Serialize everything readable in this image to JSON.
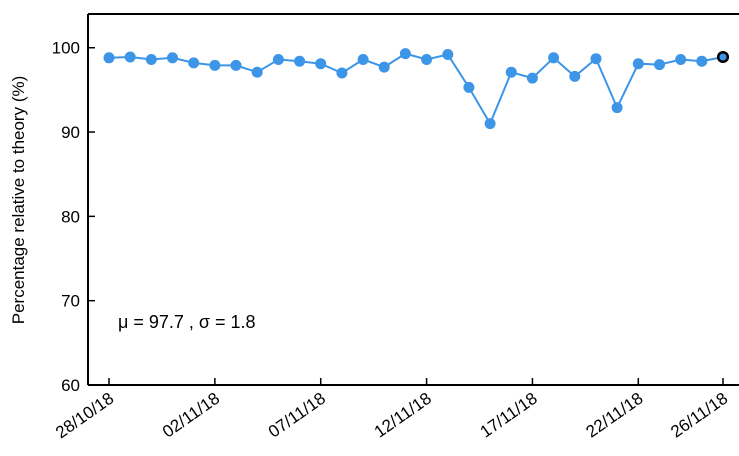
{
  "chart_data": {
    "type": "line",
    "ylabel": "Percentage relative to theory (%)",
    "xlabel": "",
    "ylim": [
      60,
      104
    ],
    "yticks": [
      60,
      70,
      80,
      90,
      100
    ],
    "xtick_labels": [
      "28/10/18",
      "02/11/18",
      "07/11/18",
      "12/11/18",
      "17/11/18",
      "22/11/18",
      "26/11/18"
    ],
    "annotation": "μ = 97.7 , σ = 1.8",
    "color": "#3d95e8",
    "highlight_color": "#000000",
    "series": [
      {
        "dates": [
          "28/10/18",
          "29/10/18",
          "30/10/18",
          "31/10/18",
          "01/11/18",
          "02/11/18",
          "03/11/18",
          "04/11/18",
          "05/11/18",
          "06/11/18",
          "07/11/18",
          "08/11/18",
          "09/11/18",
          "10/11/18",
          "11/11/18",
          "12/11/18",
          "13/11/18",
          "14/11/18",
          "15/11/18",
          "16/11/18",
          "17/11/18",
          "18/11/18",
          "19/11/18",
          "20/11/18",
          "21/11/18",
          "22/11/18",
          "23/11/18",
          "24/11/18",
          "25/11/18",
          "26/11/18"
        ],
        "values": [
          98.8,
          98.9,
          98.6,
          98.8,
          98.2,
          97.9,
          97.9,
          97.1,
          98.6,
          98.4,
          98.1,
          97.0,
          98.6,
          97.7,
          99.3,
          98.6,
          99.2,
          95.3,
          91.0,
          97.1,
          96.4,
          98.8,
          96.6,
          98.7,
          92.9,
          98.1,
          98.0,
          98.6,
          98.4,
          98.9
        ]
      }
    ]
  }
}
